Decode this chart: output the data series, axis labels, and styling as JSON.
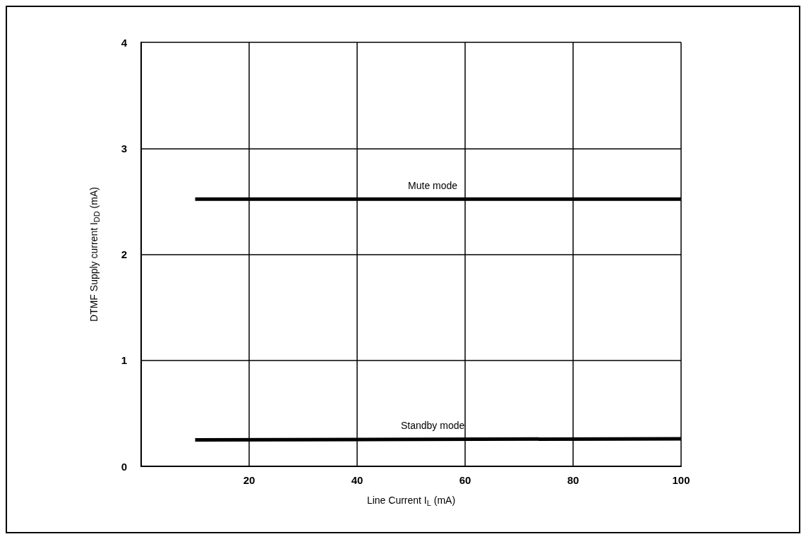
{
  "chart_data": {
    "type": "line",
    "xlabel": "Line Current I$_{L}$ (mA)",
    "ylabel": "DTMF Supply current I$_{DD}$ (mA)",
    "x": [
      10,
      100
    ],
    "series": [
      {
        "color": "#000000",
        "values": [
          2.52,
          2.52
        ]
      },
      {
        "color": "#000000",
        "values": [
          0.25,
          0.26
        ]
      }
    ],
    "annotations": [
      {
        "text": "Mute mode",
        "x": 54,
        "y": 2.52
      },
      {
        "text": "Standby mode",
        "x": 54,
        "y": 0.26
      }
    ],
    "xlim": [
      0,
      100
    ],
    "xticks": [
      20,
      40,
      60,
      80,
      100
    ],
    "ylim": [
      0,
      4
    ],
    "yticks": [
      0,
      1,
      2,
      3,
      4
    ],
    "grid": true,
    "marker": "none",
    "line_style": "solid"
  }
}
